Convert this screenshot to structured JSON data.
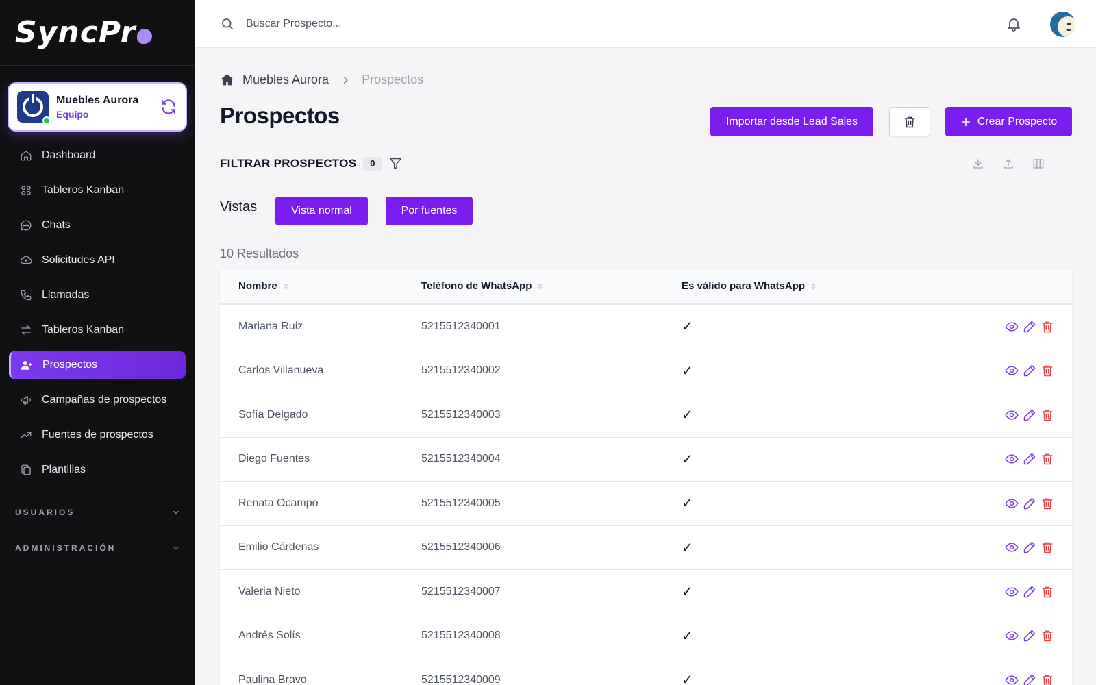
{
  "brand": {
    "logo_main": "SyncPr",
    "logo_tail": ""
  },
  "workspace": {
    "name": "Muebles Aurora",
    "role": "Equipo"
  },
  "sidebar": {
    "items": [
      {
        "label": "Dashboard",
        "icon": "home-icon"
      },
      {
        "label": "Tableros Kanban",
        "icon": "grid-icon"
      },
      {
        "label": "Chats",
        "icon": "chat-icon"
      },
      {
        "label": "Solicitudes API",
        "icon": "cloud-icon"
      },
      {
        "label": "Llamadas",
        "icon": "phone-icon"
      },
      {
        "label": "Tableros Kanban",
        "icon": "arrows-icon"
      },
      {
        "label": "Prospectos",
        "icon": "user-plus-icon",
        "active": true
      },
      {
        "label": "Campañas de prospectos",
        "icon": "megaphone-icon"
      },
      {
        "label": "Fuentes de prospectos",
        "icon": "trend-icon"
      },
      {
        "label": "Plantillas",
        "icon": "copy-icon"
      }
    ],
    "sections": [
      {
        "label": "USUARIOS"
      },
      {
        "label": "ADMINISTRACIÓN"
      }
    ]
  },
  "topbar": {
    "search_placeholder": "Buscar Prospecto..."
  },
  "breadcrumb": {
    "root": "Muebles Aurora",
    "current": "Prospectos"
  },
  "page": {
    "title": "Prospectos",
    "import_label": "Importar desde Lead Sales",
    "create_label": "Crear Prospecto",
    "filter_title": "FILTRAR PROSPECTOS",
    "filter_count": "0",
    "vistas_label": "Vistas",
    "vista_normal": "Vista normal",
    "vista_fuentes": "Por fuentes",
    "results": "10 Resultados"
  },
  "table": {
    "headers": [
      "Nombre",
      "Teléfono de WhatsApp",
      "Es válido para WhatsApp"
    ],
    "rows": [
      {
        "name": "Mariana Ruiz",
        "phone": "5215512340001",
        "valid": "✓"
      },
      {
        "name": "Carlos Villanueva",
        "phone": "5215512340002",
        "valid": "✓"
      },
      {
        "name": "Sofía Delgado",
        "phone": "5215512340003",
        "valid": "✓"
      },
      {
        "name": "Diego Fuentes",
        "phone": "5215512340004",
        "valid": "✓"
      },
      {
        "name": "Renata Ocampo",
        "phone": "5215512340005",
        "valid": "✓"
      },
      {
        "name": "Emilio Cárdenas",
        "phone": "5215512340006",
        "valid": "✓"
      },
      {
        "name": "Valeria Nieto",
        "phone": "5215512340007",
        "valid": "✓"
      },
      {
        "name": "Andrés Solís",
        "phone": "5215512340008",
        "valid": "✓"
      },
      {
        "name": "Paulina Bravo",
        "phone": "5215512340009",
        "valid": "✓"
      }
    ]
  },
  "colors": {
    "accent": "#7c1df0",
    "sidebar_bg": "#111113",
    "danger": "#ef4444",
    "online": "#22c55e"
  }
}
